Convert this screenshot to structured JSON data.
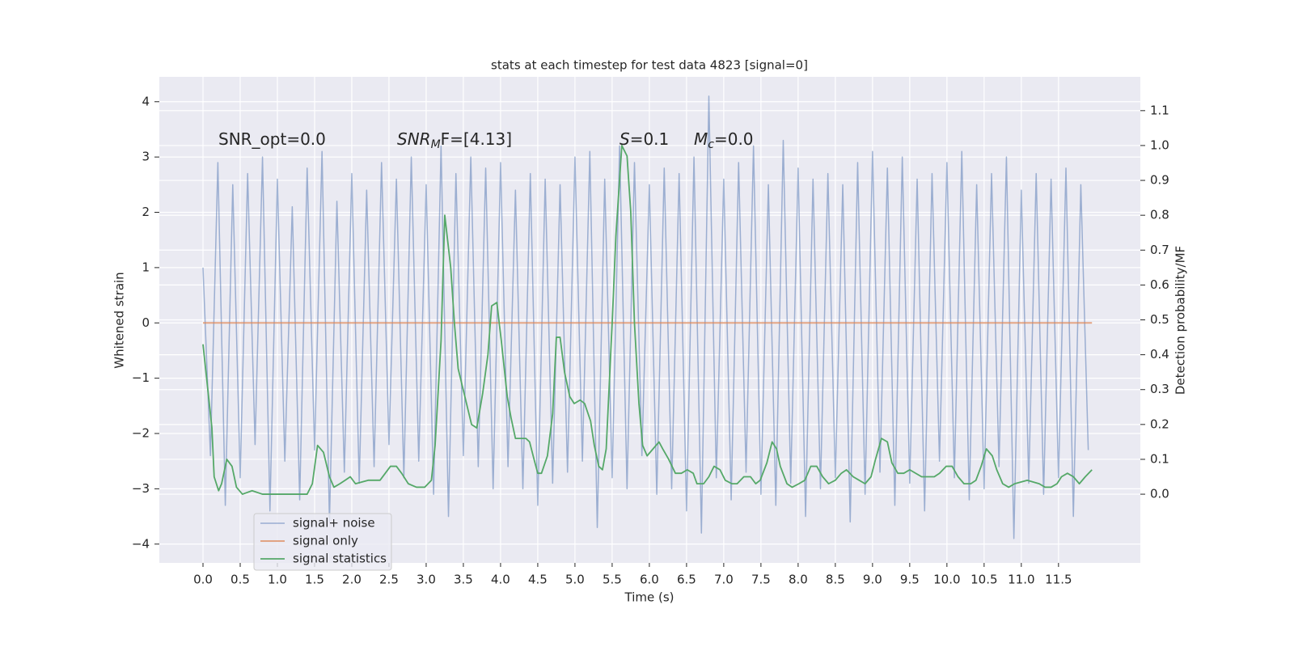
{
  "chart_data": {
    "type": "line",
    "title": "stats at each timestep for test data 4823 [signal=0]",
    "x_label": "Time (s)",
    "y_label": "Whitened strain",
    "y2_label": "Detection probability/MF",
    "xlim": [
      -0.587,
      12.6
    ],
    "ylim": [
      -4.34,
      4.45
    ],
    "y2lim": [
      -0.197,
      1.197
    ],
    "grid": true,
    "legend": "lower left",
    "xticks": [
      {
        "value": 0,
        "label": "0.0"
      },
      0.5,
      {
        "value": 1,
        "label": "1.0"
      },
      1.5,
      {
        "value": 2,
        "label": "2.0"
      },
      2.5,
      {
        "value": 3,
        "label": "3.0"
      },
      3.5,
      {
        "value": 4,
        "label": "4.0"
      },
      4.5,
      {
        "value": 5,
        "label": "5.0"
      },
      5.5,
      {
        "value": 6,
        "label": "6.0"
      },
      6.5,
      {
        "value": 7,
        "label": "7.0"
      },
      7.5,
      {
        "value": 8,
        "label": "8.0"
      },
      8.5,
      {
        "value": 9,
        "label": "9.0"
      },
      9.5,
      {
        "value": 10,
        "label": "10.0"
      },
      10.5,
      {
        "value": 11,
        "label": "11.0"
      },
      11.5
    ],
    "yticks": [
      {
        "value": -4,
        "label": "−4"
      },
      {
        "value": -3,
        "label": "−3"
      },
      {
        "value": -2,
        "label": "−2"
      },
      {
        "value": -1,
        "label": "−1"
      },
      0,
      1,
      2,
      3,
      4
    ],
    "y2ticks": [
      {
        "value": 0,
        "label": "0.0"
      },
      0.1,
      0.2,
      0.3,
      0.4,
      0.5,
      0.6,
      0.7,
      0.8,
      0.9,
      {
        "value": 1,
        "label": "1.0"
      },
      1.1
    ],
    "annotations": [
      {
        "text": "SNR_opt=0.0"
      },
      {
        "text": "SNR",
        "sub": "M",
        "rest": "F=[4.13]"
      },
      {
        "text": "S",
        "rest": "=0.1"
      },
      {
        "text": "M",
        "sub": "c",
        "rest": "=0.0"
      }
    ],
    "series": [
      {
        "name": "signal+ noise",
        "color": "#4c72b0",
        "axis": "y",
        "x": [
          0,
          0.1,
          0.2,
          0.3,
          0.4,
          0.5,
          0.6,
          0.7,
          0.8,
          0.9,
          1,
          1.1,
          1.2,
          1.3,
          1.4,
          1.5,
          1.6,
          1.7,
          1.8,
          1.9,
          2,
          2.1,
          2.2,
          2.3,
          2.4,
          2.5,
          2.6,
          2.7,
          2.8,
          2.9,
          3,
          3.1,
          3.2,
          3.3,
          3.4,
          3.5,
          3.6,
          3.7,
          3.8,
          3.9,
          4,
          4.1,
          4.2,
          4.3,
          4.4,
          4.5,
          4.6,
          4.7,
          4.8,
          4.9,
          5,
          5.1,
          5.2,
          5.3,
          5.4,
          5.5,
          5.6,
          5.7,
          5.8,
          5.9,
          6,
          6.1,
          6.2,
          6.3,
          6.4,
          6.5,
          6.6,
          6.7,
          6.8,
          6.9,
          7,
          7.1,
          7.2,
          7.3,
          7.4,
          7.5,
          7.6,
          7.7,
          7.8,
          7.9,
          8,
          8.1,
          8.2,
          8.3,
          8.4,
          8.5,
          8.6,
          8.7,
          8.8,
          8.9,
          9,
          9.1,
          9.2,
          9.3,
          9.4,
          9.5,
          9.6,
          9.7,
          9.8,
          9.9,
          10,
          10.1,
          10.2,
          10.3,
          10.4,
          10.5,
          10.6,
          10.7,
          10.8,
          10.9,
          11,
          11.1,
          11.2,
          11.3,
          11.4,
          11.5,
          11.6,
          11.7,
          11.8,
          11.9
        ],
        "values": [
          1.0,
          -2.4,
          2.9,
          -3.3,
          2.5,
          -2.8,
          2.7,
          -2.2,
          3.0,
          -3.4,
          2.6,
          -2.5,
          2.1,
          -3.2,
          2.8,
          -2.3,
          3.1,
          -3.6,
          2.2,
          -2.7,
          2.7,
          -2.9,
          2.4,
          -2.6,
          2.9,
          -2.2,
          2.6,
          -2.8,
          3.0,
          -2.5,
          2.5,
          -3.1,
          3.2,
          -3.5,
          2.7,
          -2.4,
          3.0,
          -2.6,
          2.8,
          -3.0,
          2.9,
          -2.6,
          2.4,
          -3.0,
          2.7,
          -3.3,
          2.6,
          -2.9,
          2.5,
          -2.7,
          3.0,
          -2.5,
          3.1,
          -3.7,
          2.6,
          -2.8,
          3.2,
          -3.0,
          2.9,
          -2.4,
          2.5,
          -3.1,
          2.8,
          -3.0,
          2.7,
          -3.4,
          3.0,
          -3.8,
          4.1,
          -2.8,
          2.6,
          -3.2,
          2.9,
          -2.7,
          3.2,
          -3.1,
          2.5,
          -3.3,
          3.3,
          -2.9,
          2.8,
          -3.5,
          2.6,
          -3.0,
          2.7,
          -2.8,
          2.5,
          -3.6,
          2.9,
          -3.1,
          3.1,
          -2.7,
          2.8,
          -3.3,
          3.0,
          -2.9,
          2.6,
          -3.4,
          2.7,
          -2.5,
          2.9,
          -2.8,
          3.1,
          -3.2,
          2.5,
          -3.0,
          2.7,
          -2.6,
          3.0,
          -3.9,
          2.4,
          -2.9,
          2.7,
          -3.1,
          2.6,
          -2.8,
          2.8,
          -3.5,
          2.5,
          -2.3
        ]
      },
      {
        "name": "signal only",
        "color": "#dd8452",
        "axis": "y",
        "x": [
          0,
          11.95
        ],
        "values": [
          0,
          0
        ]
      },
      {
        "name": "signal statistics",
        "color": "#55a868",
        "axis": "y2",
        "x": [
          0,
          0.12,
          0.15,
          0.21,
          0.25,
          0.32,
          0.39,
          0.45,
          0.53,
          0.66,
          0.8,
          1.02,
          1.24,
          1.4,
          1.47,
          1.54,
          1.62,
          1.7,
          1.76,
          1.84,
          1.91,
          1.98,
          2.05,
          2.22,
          2.38,
          2.52,
          2.6,
          2.67,
          2.76,
          2.87,
          2.98,
          3.07,
          3.12,
          3.2,
          3.25,
          3.33,
          3.38,
          3.43,
          3.52,
          3.61,
          3.68,
          3.76,
          3.83,
          3.88,
          3.95,
          4.01,
          4.09,
          4.14,
          4.2,
          4.28,
          4.34,
          4.39,
          4.45,
          4.5,
          4.55,
          4.63,
          4.7,
          4.75,
          4.8,
          4.86,
          4.93,
          4.99,
          5.07,
          5.13,
          5.21,
          5.26,
          5.32,
          5.37,
          5.42,
          5.5,
          5.55,
          5.63,
          5.7,
          5.75,
          5.8,
          5.86,
          5.91,
          5.97,
          6.05,
          6.13,
          6.18,
          6.26,
          6.35,
          6.43,
          6.51,
          6.59,
          6.64,
          6.73,
          6.8,
          6.87,
          6.95,
          7.02,
          7.11,
          7.18,
          7.27,
          7.36,
          7.43,
          7.49,
          7.58,
          7.65,
          7.71,
          7.76,
          7.85,
          7.92,
          8.01,
          8.09,
          8.17,
          8.25,
          8.33,
          8.41,
          8.5,
          8.58,
          8.65,
          8.74,
          8.82,
          8.9,
          8.98,
          9.04,
          9.12,
          9.2,
          9.26,
          9.34,
          9.42,
          9.5,
          9.66,
          9.83,
          9.9,
          9.99,
          10.07,
          10.15,
          10.23,
          10.32,
          10.39,
          10.46,
          10.53,
          10.61,
          10.67,
          10.75,
          10.83,
          10.91,
          11.08,
          11.24,
          11.32,
          11.4,
          11.48,
          11.54,
          11.62,
          11.7,
          11.78,
          11.86,
          11.95
        ],
        "values": [
          0.43,
          0.19,
          0.05,
          0.01,
          0.03,
          0.1,
          0.08,
          0.02,
          0,
          0.01,
          0,
          0,
          0,
          0,
          0.03,
          0.14,
          0.12,
          0.05,
          0.02,
          0.03,
          0.04,
          0.05,
          0.03,
          0.04,
          0.04,
          0.08,
          0.08,
          0.06,
          0.03,
          0.02,
          0.02,
          0.04,
          0.14,
          0.44,
          0.8,
          0.65,
          0.49,
          0.36,
          0.28,
          0.2,
          0.19,
          0.29,
          0.4,
          0.54,
          0.55,
          0.44,
          0.28,
          0.22,
          0.16,
          0.16,
          0.16,
          0.15,
          0.1,
          0.06,
          0.06,
          0.11,
          0.23,
          0.45,
          0.45,
          0.35,
          0.28,
          0.26,
          0.27,
          0.26,
          0.21,
          0.14,
          0.08,
          0.07,
          0.13,
          0.49,
          0.74,
          1.0,
          0.97,
          0.81,
          0.49,
          0.26,
          0.14,
          0.11,
          0.13,
          0.15,
          0.13,
          0.1,
          0.06,
          0.06,
          0.07,
          0.06,
          0.03,
          0.03,
          0.05,
          0.08,
          0.07,
          0.04,
          0.03,
          0.03,
          0.05,
          0.05,
          0.03,
          0.04,
          0.09,
          0.15,
          0.13,
          0.08,
          0.03,
          0.02,
          0.03,
          0.04,
          0.08,
          0.08,
          0.05,
          0.03,
          0.04,
          0.06,
          0.07,
          0.05,
          0.04,
          0.03,
          0.05,
          0.1,
          0.16,
          0.15,
          0.09,
          0.06,
          0.06,
          0.07,
          0.05,
          0.05,
          0.06,
          0.08,
          0.08,
          0.05,
          0.03,
          0.03,
          0.04,
          0.08,
          0.13,
          0.11,
          0.07,
          0.03,
          0.02,
          0.03,
          0.04,
          0.03,
          0.02,
          0.02,
          0.03,
          0.05,
          0.06,
          0.05,
          0.03,
          0.05,
          0.07
        ]
      }
    ]
  }
}
